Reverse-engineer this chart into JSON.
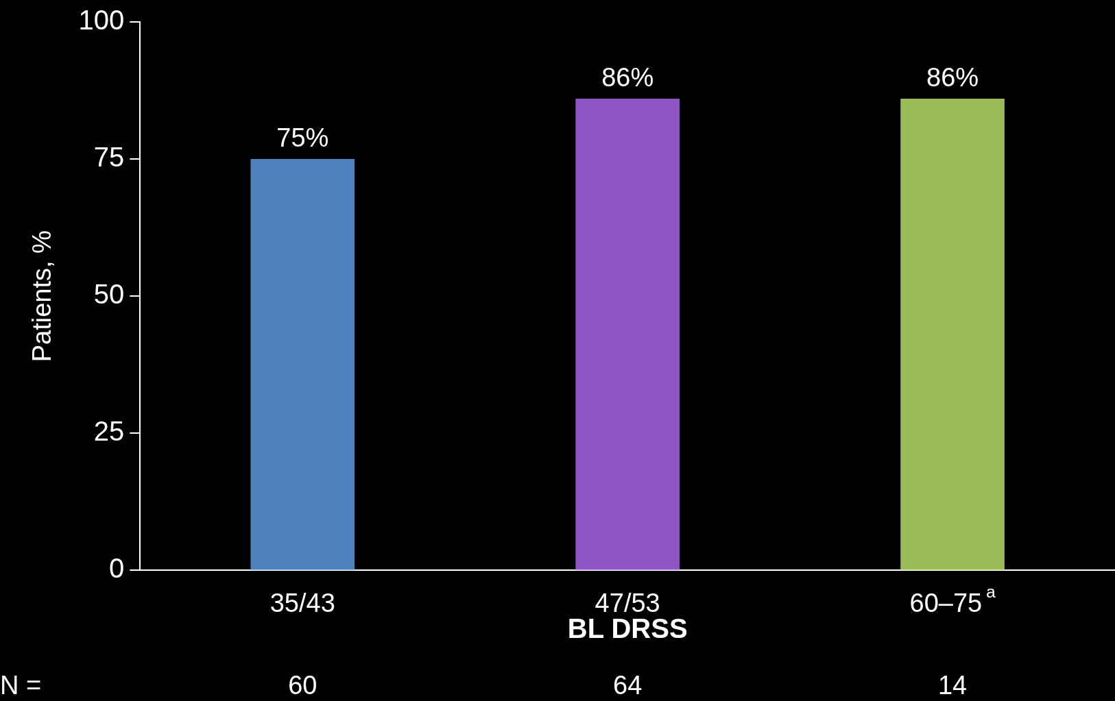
{
  "chart_data": {
    "type": "bar",
    "xlabel": "BL DRSS",
    "ylabel": "Patients, %",
    "categories": [
      "35/43",
      "47/53",
      "60–75$^{a}$"
    ],
    "values": [
      75,
      86,
      86
    ],
    "colors": [
      "#4f81bd",
      "#8e55c4",
      "#9bbb59"
    ],
    "value_labels": [
      "75%",
      "86%",
      "86%"
    ],
    "ylim": [
      0,
      100
    ],
    "yticks": [
      0,
      25,
      50,
      75,
      100
    ],
    "grid": false,
    "legend": false,
    "annotations": [
      "N =",
      "60",
      "64",
      "14"
    ]
  }
}
